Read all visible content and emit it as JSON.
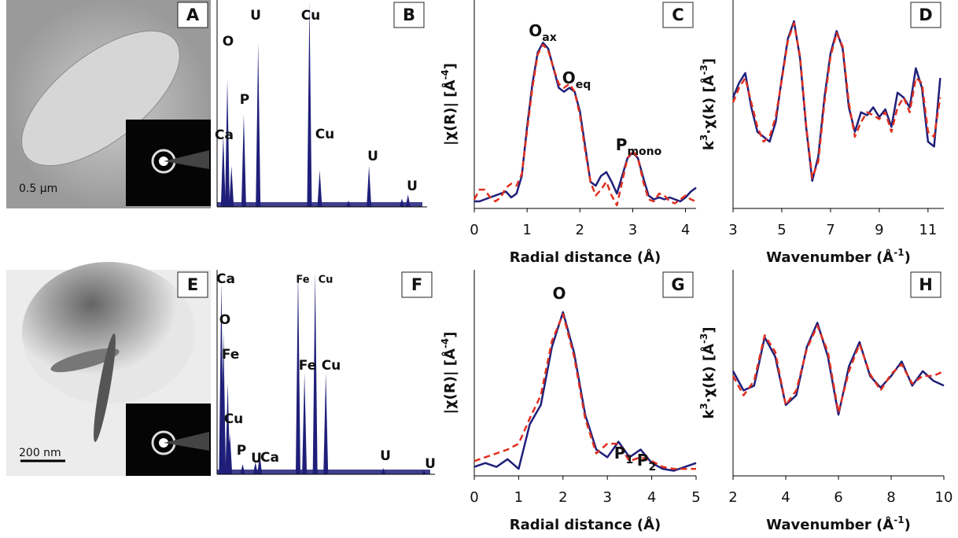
{
  "chart_data": [
    {
      "type": "image",
      "letter": "A",
      "scale_bar": "0.5 µm"
    },
    {
      "type": "spectrum",
      "letter": "B",
      "color": "#1f1f7a",
      "peaks": [
        {
          "x": 3,
          "h": 35
        },
        {
          "x": 5,
          "h": 62
        },
        {
          "x": 7,
          "h": 20
        },
        {
          "x": 13,
          "h": 45
        },
        {
          "x": 20,
          "h": 80
        },
        {
          "x": 45,
          "h": 100
        },
        {
          "x": 50,
          "h": 18
        },
        {
          "x": 64,
          "h": 3
        },
        {
          "x": 74,
          "h": 20
        },
        {
          "x": 90,
          "h": 4
        },
        {
          "x": 93,
          "h": 6
        }
      ],
      "labels": [
        "Ca",
        "O",
        "P",
        "U",
        "Cu",
        "Cu",
        "U",
        "U"
      ]
    },
    {
      "type": "line",
      "letter": "C",
      "x": [
        0,
        0.1,
        0.2,
        0.3,
        0.4,
        0.5,
        0.6,
        0.7,
        0.8,
        0.9,
        1.0,
        1.1,
        1.2,
        1.3,
        1.4,
        1.5,
        1.6,
        1.7,
        1.8,
        1.9,
        2.0,
        2.1,
        2.2,
        2.3,
        2.4,
        2.5,
        2.6,
        2.7,
        2.8,
        2.9,
        3.0,
        3.1,
        3.2,
        3.3,
        3.4,
        3.5,
        3.6,
        3.7,
        3.8,
        3.9,
        4.0,
        4.1,
        4.2
      ],
      "series": [
        {
          "color": "#1f1f7a",
          "dashed": false,
          "values": [
            2,
            2,
            3,
            4,
            5,
            6,
            7,
            4,
            6,
            15,
            40,
            62,
            78,
            83,
            80,
            70,
            60,
            58,
            60,
            58,
            48,
            30,
            12,
            10,
            15,
            17,
            12,
            6,
            15,
            24,
            27,
            24,
            14,
            5,
            3,
            4,
            3,
            4,
            3,
            2,
            4,
            7,
            9
          ]
        },
        {
          "color": "#e0301e",
          "dashed": true,
          "values": [
            3,
            8,
            8,
            4,
            2,
            4,
            9,
            11,
            10,
            16,
            38,
            60,
            77,
            82,
            79,
            70,
            62,
            60,
            62,
            58,
            46,
            28,
            12,
            5,
            8,
            12,
            5,
            0,
            12,
            24,
            28,
            24,
            12,
            3,
            2,
            6,
            5,
            2,
            1,
            3,
            5,
            3,
            2
          ]
        }
      ],
      "xlim": [
        0,
        4.2
      ],
      "xticks": [
        0,
        1,
        2,
        3,
        4
      ],
      "ylim": [
        0,
        100
      ],
      "xlabel": [
        {
          "t": "Radial distance (Å)"
        }
      ],
      "ylabel": [
        {
          "t": "|χ(R)| [Å"
        },
        {
          "sup": "-4"
        },
        {
          "t": "]"
        }
      ],
      "annotations": [
        {
          "text": "O",
          "sub": "ax"
        },
        {
          "text": "O",
          "sub": "eq"
        },
        {
          "text": "P",
          "sub": "mono"
        }
      ]
    },
    {
      "type": "line",
      "letter": "D",
      "x": [
        3,
        3.25,
        3.5,
        3.75,
        4,
        4.25,
        4.5,
        4.75,
        5,
        5.25,
        5.5,
        5.75,
        6,
        6.25,
        6.5,
        6.75,
        7,
        7.25,
        7.5,
        7.75,
        8,
        8.25,
        8.5,
        8.75,
        9,
        9.25,
        9.5,
        9.75,
        10,
        10.25,
        10.5,
        10.75,
        11,
        11.25,
        11.5
      ],
      "series": [
        {
          "color": "#1f1f7a",
          "dashed": false,
          "values": [
            10,
            25,
            35,
            0,
            -25,
            -30,
            -35,
            -15,
            30,
            70,
            88,
            50,
            -20,
            -75,
            -50,
            10,
            55,
            78,
            60,
            0,
            -25,
            -5,
            -8,
            0,
            -10,
            -2,
            -20,
            15,
            10,
            0,
            40,
            20,
            -35,
            -40,
            30
          ]
        },
        {
          "color": "#e0301e",
          "dashed": true,
          "values": [
            5,
            20,
            30,
            5,
            -20,
            -35,
            -30,
            -10,
            28,
            68,
            86,
            52,
            -18,
            -72,
            -55,
            5,
            52,
            76,
            62,
            5,
            -30,
            -15,
            -5,
            -8,
            -12,
            -5,
            -25,
            0,
            10,
            -5,
            30,
            25,
            -25,
            -30,
            10
          ]
        }
      ],
      "xlim": [
        3,
        11.65
      ],
      "xticks": [
        3,
        5,
        7,
        9,
        11
      ],
      "ylim": [
        -100,
        100
      ],
      "xlabel": [
        {
          "t": "Wavenumber (Å"
        },
        {
          "sup": "-1"
        },
        {
          "t": ")"
        }
      ],
      "ylabel": [
        {
          "t": "k"
        },
        {
          "sup": "3"
        },
        {
          "t": "·χ(k) [Å"
        },
        {
          "sup": "-3"
        },
        {
          "t": "]"
        }
      ],
      "annotations": []
    },
    {
      "type": "image",
      "letter": "E",
      "scale_bar": "200 nm"
    },
    {
      "type": "spectrum",
      "letter": "F",
      "color": "#1f1f7a",
      "peaks": [
        {
          "x": 2,
          "h": 95
        },
        {
          "x": 3,
          "h": 70
        },
        {
          "x": 5,
          "h": 45
        },
        {
          "x": 6,
          "h": 20
        },
        {
          "x": 12,
          "h": 5
        },
        {
          "x": 18,
          "h": 6
        },
        {
          "x": 20,
          "h": 10
        },
        {
          "x": 38,
          "h": 100
        },
        {
          "x": 41,
          "h": 50
        },
        {
          "x": 46,
          "h": 100
        },
        {
          "x": 51,
          "h": 50
        },
        {
          "x": 78,
          "h": 3
        },
        {
          "x": 97,
          "h": 2
        }
      ],
      "labels": [
        "Ca",
        "O",
        "Fe",
        "Cu",
        "P",
        "U",
        "Ca",
        "Fe",
        "Cu",
        "Fe",
        "Cu",
        "U",
        "U"
      ]
    },
    {
      "type": "line",
      "letter": "G",
      "x": [
        0,
        0.25,
        0.5,
        0.75,
        1,
        1.25,
        1.5,
        1.75,
        2,
        2.25,
        2.5,
        2.75,
        3,
        3.25,
        3.5,
        3.75,
        4,
        4.25,
        4.5,
        4.75,
        5
      ],
      "series": [
        {
          "color": "#1f1f7a",
          "dashed": false,
          "values": [
            3,
            5,
            3,
            7,
            2,
            25,
            35,
            65,
            83,
            62,
            30,
            12,
            8,
            16,
            8,
            12,
            5,
            2,
            1,
            3,
            5
          ]
        },
        {
          "color": "#e0301e",
          "dashed": true,
          "values": [
            6,
            8,
            10,
            12,
            15,
            28,
            40,
            68,
            82,
            60,
            28,
            10,
            15,
            15,
            6,
            8,
            6,
            3,
            2,
            2,
            2
          ]
        }
      ],
      "xlim": [
        0,
        5
      ],
      "xticks": [
        0,
        1,
        2,
        3,
        4,
        5
      ],
      "ylim": [
        0,
        100
      ],
      "xlabel": [
        {
          "t": "Radial distance (Å)"
        }
      ],
      "ylabel": [
        {
          "t": "|χ(R)| [Å"
        },
        {
          "sup": "-4"
        },
        {
          "t": "]"
        }
      ],
      "annotations": [
        {
          "text": "O",
          "sub": ""
        },
        {
          "text": "P",
          "sub": "1"
        },
        {
          "text": "P",
          "sub": "2"
        }
      ]
    },
    {
      "type": "line",
      "letter": "H",
      "x": [
        2,
        2.4,
        2.8,
        3.2,
        3.6,
        4,
        4.4,
        4.8,
        5.2,
        5.6,
        6,
        6.4,
        6.8,
        7.2,
        7.6,
        8,
        8.4,
        8.8,
        9.2,
        9.6,
        10
      ],
      "series": [
        {
          "color": "#1f1f7a",
          "dashed": false,
          "values": [
            5,
            -15,
            -10,
            40,
            20,
            -30,
            -20,
            30,
            55,
            20,
            -40,
            10,
            35,
            0,
            -12,
            0,
            15,
            -10,
            5,
            -5,
            -10
          ]
        },
        {
          "color": "#e0301e",
          "dashed": true,
          "values": [
            0,
            -20,
            -5,
            42,
            25,
            -30,
            -15,
            28,
            52,
            25,
            -38,
            5,
            33,
            2,
            -15,
            2,
            12,
            -8,
            0,
            0,
            5
          ]
        }
      ],
      "xlim": [
        2,
        10
      ],
      "xticks": [
        2,
        4,
        6,
        8,
        10
      ],
      "ylim": [
        -100,
        100
      ],
      "xlabel": [
        {
          "t": "Wavenumber (Å"
        },
        {
          "sup": "-1"
        },
        {
          "t": ")"
        }
      ],
      "ylabel": [
        {
          "t": "k"
        },
        {
          "sup": "3"
        },
        {
          "t": "·χ(k) [Å"
        },
        {
          "sup": "-3"
        },
        {
          "t": "]"
        }
      ],
      "annotations": []
    }
  ]
}
